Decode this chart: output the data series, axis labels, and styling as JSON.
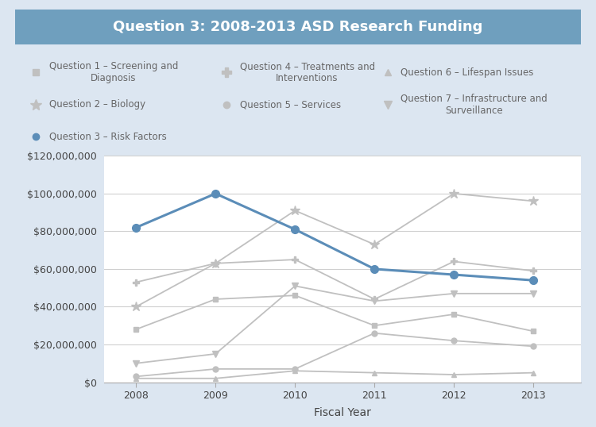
{
  "title": "Question 3: 2008-2013 ASD Research Funding",
  "xlabel": "Fiscal Year",
  "years": [
    2008,
    2009,
    2010,
    2011,
    2012,
    2013
  ],
  "series": {
    "Q1_Screening": {
      "label": "Question 1 – Screening and\nDiagnosis",
      "values": [
        28000000,
        44000000,
        46000000,
        30000000,
        36000000,
        27000000
      ],
      "color": "#c0c0c0",
      "marker": "s",
      "markersize": 5,
      "linewidth": 1.3,
      "zorder": 2
    },
    "Q2_Biology": {
      "label": "Question 2 – Biology",
      "values": [
        40000000,
        63000000,
        91000000,
        73000000,
        100000000,
        96000000
      ],
      "color": "#c0c0c0",
      "marker": "*",
      "markersize": 9,
      "linewidth": 1.3,
      "zorder": 2
    },
    "Q3_RiskFactors": {
      "label": "Question 3 – Risk Factors",
      "values": [
        82000000,
        100000000,
        81000000,
        60000000,
        57000000,
        54000000
      ],
      "color": "#5b8db8",
      "marker": "o",
      "markersize": 7,
      "linewidth": 2.2,
      "zorder": 5
    },
    "Q4_Treatments": {
      "label": "Question 4 – Treatments and\nInterventions",
      "values": [
        53000000,
        63000000,
        65000000,
        44000000,
        64000000,
        59000000
      ],
      "color": "#c0c0c0",
      "marker": "P",
      "markersize": 6,
      "linewidth": 1.3,
      "zorder": 2
    },
    "Q5_Services": {
      "label": "Question 5 – Services",
      "values": [
        3000000,
        7000000,
        7000000,
        26000000,
        22000000,
        19000000
      ],
      "color": "#c0c0c0",
      "marker": "o",
      "markersize": 5,
      "linewidth": 1.3,
      "zorder": 2
    },
    "Q6_Lifespan": {
      "label": "Question 6 – Lifespan Issues",
      "values": [
        2000000,
        2000000,
        6000000,
        5000000,
        4000000,
        5000000
      ],
      "color": "#c0c0c0",
      "marker": "^",
      "markersize": 5,
      "linewidth": 1.3,
      "zorder": 2
    },
    "Q7_Infrastructure": {
      "label": "Question 7 – Infrastructure and\nSurveillance",
      "values": [
        10000000,
        15000000,
        51000000,
        43000000,
        47000000,
        47000000
      ],
      "color": "#c0c0c0",
      "marker": "v",
      "markersize": 6,
      "linewidth": 1.3,
      "zorder": 2
    }
  },
  "ylim": [
    0,
    120000000
  ],
  "yticks": [
    0,
    20000000,
    40000000,
    60000000,
    80000000,
    100000000,
    120000000
  ],
  "ytick_labels": [
    "$0",
    "$20,000,000",
    "$40,000,000",
    "$60,000,000",
    "$80,000,000",
    "$100,000,000",
    "$120,000,000"
  ],
  "plot_bg": "#ffffff",
  "outer_bg": "#dce6f1",
  "title_bg": "#6f9fbe",
  "title_color": "#ffffff",
  "legend_text_color": "#666666",
  "axis_color": "#888888",
  "grid_color": "#d0d0d0",
  "legend_fontsize": 8.5,
  "axis_fontsize": 9,
  "title_fontsize": 13,
  "tick_label_fontsize": 9
}
